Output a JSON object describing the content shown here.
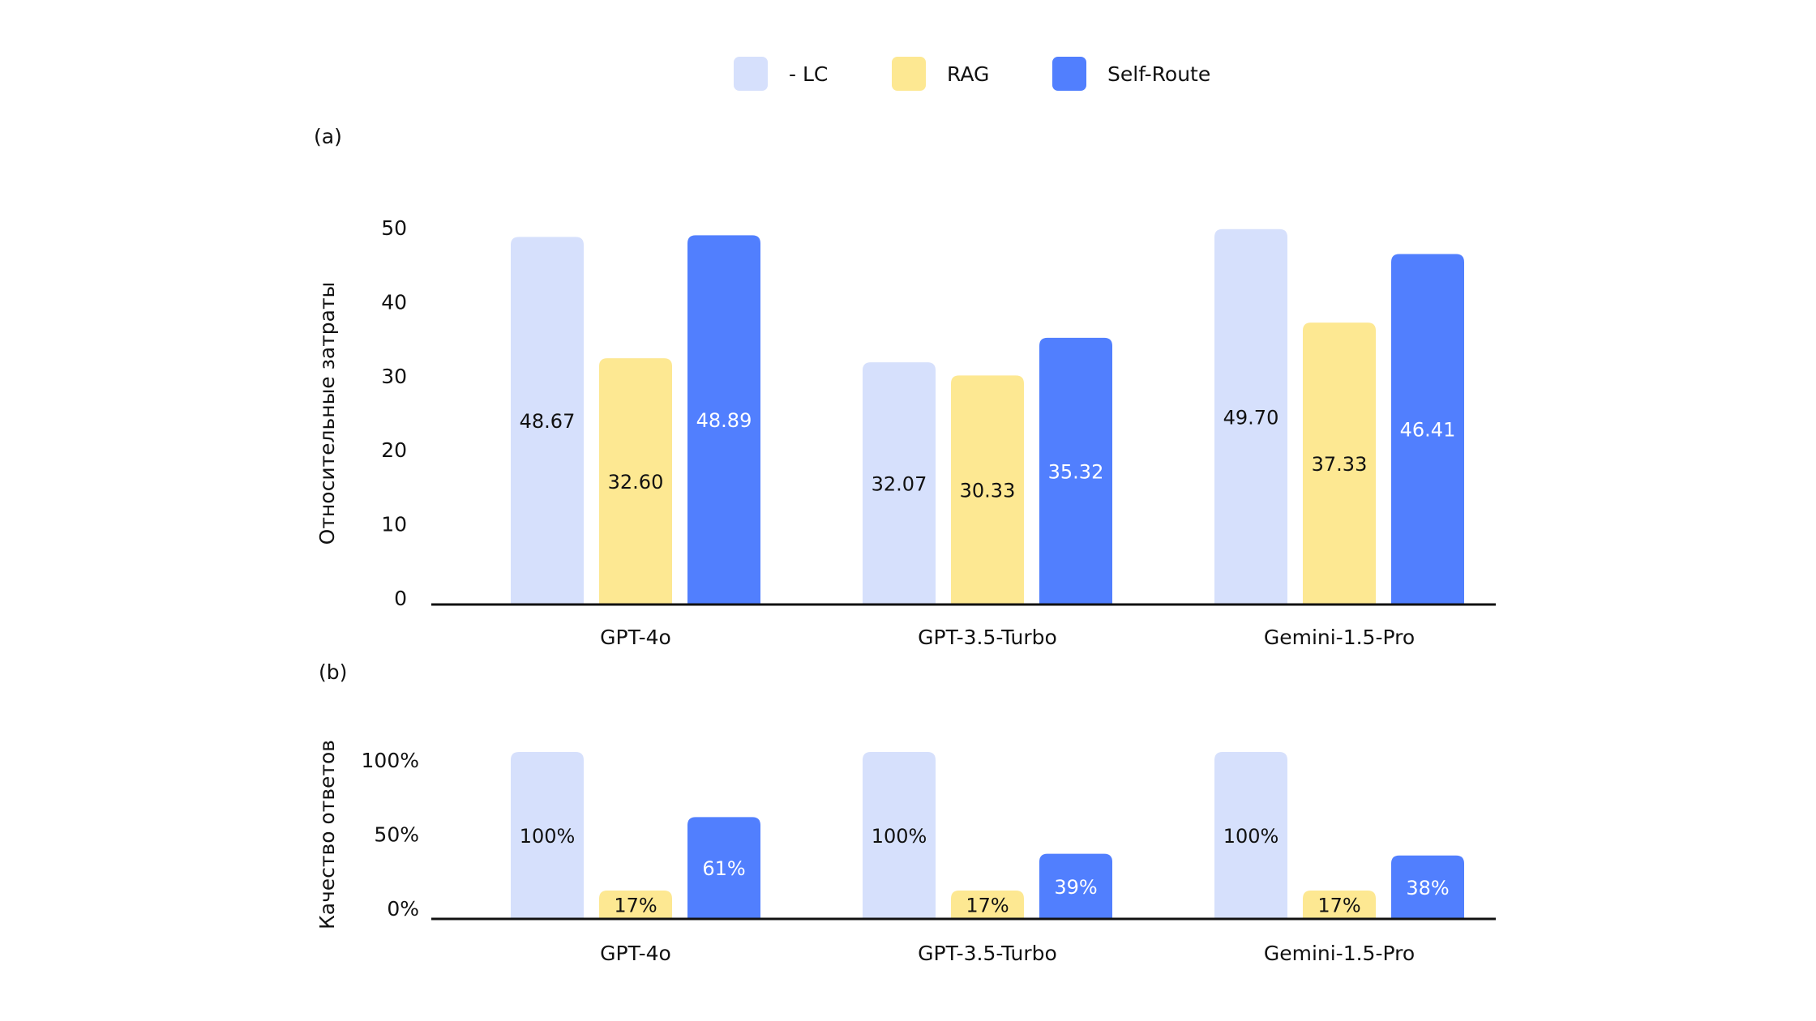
{
  "legend": [
    {
      "label": "- LC",
      "color": "#d6e0fc"
    },
    {
      "label": "RAG",
      "color": "#fde892"
    },
    {
      "label": "Self-Route",
      "color": "#517ffe"
    }
  ],
  "chart_data": [
    {
      "type": "bar",
      "panel_label": "(a)",
      "title": "",
      "xlabel": "",
      "ylabel": "Относительные затраты",
      "ylim": [
        0,
        50
      ],
      "yticks": [
        "0",
        "10",
        "20",
        "30",
        "40",
        "50"
      ],
      "categories": [
        "GPT-4o",
        "GPT-3.5-Turbo",
        "Gemini-1.5-Pro"
      ],
      "series": [
        {
          "name": "- LC",
          "values": [
            48.67,
            32.07,
            49.7
          ],
          "labels": [
            "48.67",
            "32.07",
            "49.70"
          ]
        },
        {
          "name": "RAG",
          "values": [
            32.6,
            30.33,
            37.33
          ],
          "labels": [
            "32.60",
            "30.33",
            "37.33"
          ]
        },
        {
          "name": "Self-Route",
          "values": [
            48.89,
            35.32,
            46.41
          ],
          "labels": [
            "48.89",
            "35.32",
            "46.41"
          ]
        }
      ],
      "grid": false,
      "legend": "top-center"
    },
    {
      "type": "bar",
      "panel_label": "(b)",
      "title": "",
      "xlabel": "",
      "ylabel": "Качество ответов",
      "ylim": [
        0,
        100
      ],
      "yticks": [
        "0%",
        "50%",
        "100%"
      ],
      "categories": [
        "GPT-4o",
        "GPT-3.5-Turbo",
        "Gemini-1.5-Pro"
      ],
      "series": [
        {
          "name": "- LC",
          "values": [
            100,
            100,
            100
          ],
          "labels": [
            "100%",
            "100%",
            "100%"
          ]
        },
        {
          "name": "RAG",
          "values": [
            17,
            17,
            17
          ],
          "labels": [
            "17%",
            "17%",
            "17%"
          ]
        },
        {
          "name": "Self-Route",
          "values": [
            61,
            39,
            38
          ],
          "labels": [
            "61%",
            "39%",
            "38%"
          ]
        }
      ],
      "grid": false,
      "legend": "top-center"
    }
  ],
  "colors": {
    "axis": "#111111",
    "label_dark": "#111111",
    "label_light": "#ffffff"
  }
}
